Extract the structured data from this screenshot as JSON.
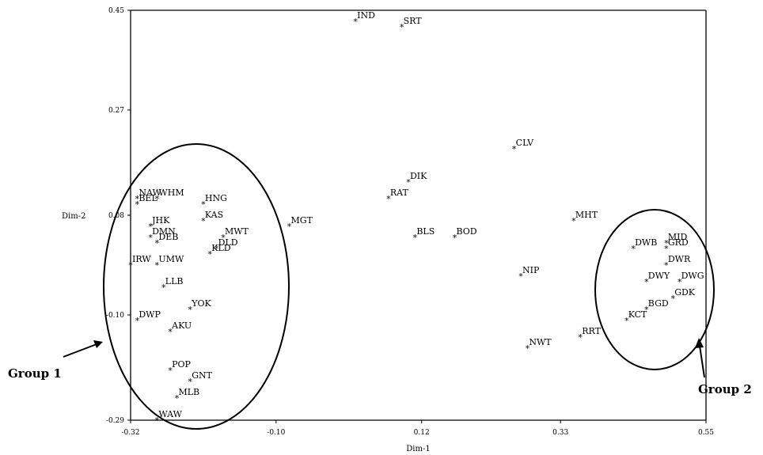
{
  "chart_data": {
    "type": "scatter",
    "xlabel": "Dim-1",
    "ylabel": "Dim-2",
    "xlim": [
      -0.32,
      0.55
    ],
    "ylim": [
      -0.29,
      0.45
    ],
    "xticks": [
      "-0.32",
      "-0.10",
      "0.12",
      "0.33",
      "0.55"
    ],
    "yticks": [
      "0.45",
      "0.27",
      "0.08",
      "-0.10",
      "-0.29"
    ],
    "marker": "*",
    "points": [
      {
        "label": "IND",
        "x": 0.02,
        "y": 0.43
      },
      {
        "label": "SRT",
        "x": 0.09,
        "y": 0.42
      },
      {
        "label": "CLV",
        "x": 0.26,
        "y": 0.2
      },
      {
        "label": "DIK",
        "x": 0.1,
        "y": 0.14
      },
      {
        "label": "RAT",
        "x": 0.07,
        "y": 0.11
      },
      {
        "label": "MHT",
        "x": 0.35,
        "y": 0.07
      },
      {
        "label": "MGT",
        "x": -0.08,
        "y": 0.06
      },
      {
        "label": "BLS",
        "x": 0.11,
        "y": 0.04
      },
      {
        "label": "BOD",
        "x": 0.17,
        "y": 0.04
      },
      {
        "label": "NIP",
        "x": 0.27,
        "y": -0.03
      },
      {
        "label": "NWT",
        "x": 0.28,
        "y": -0.16
      },
      {
        "label": "RRT",
        "x": 0.36,
        "y": -0.14
      },
      {
        "label": "NAW",
        "x": -0.31,
        "y": 0.11
      },
      {
        "label": "BEL",
        "x": -0.31,
        "y": 0.1
      },
      {
        "label": "WHM",
        "x": -0.28,
        "y": 0.11
      },
      {
        "label": "HNG",
        "x": -0.21,
        "y": 0.1
      },
      {
        "label": "JHK",
        "x": -0.29,
        "y": 0.06
      },
      {
        "label": "KAS",
        "x": -0.21,
        "y": 0.07
      },
      {
        "label": "DMN",
        "x": -0.29,
        "y": 0.04
      },
      {
        "label": "DEB",
        "x": -0.28,
        "y": 0.03
      },
      {
        "label": "MWT",
        "x": -0.18,
        "y": 0.04
      },
      {
        "label": "KLD",
        "x": -0.2,
        "y": 0.01
      },
      {
        "label": "DLD",
        "x": -0.19,
        "y": 0.02
      },
      {
        "label": "IRW",
        "x": -0.32,
        "y": -0.01
      },
      {
        "label": "UMW",
        "x": -0.28,
        "y": -0.01
      },
      {
        "label": "LLB",
        "x": -0.27,
        "y": -0.05
      },
      {
        "label": "YOK",
        "x": -0.23,
        "y": -0.09
      },
      {
        "label": "DWP",
        "x": -0.31,
        "y": -0.11
      },
      {
        "label": "AKU",
        "x": -0.26,
        "y": -0.13
      },
      {
        "label": "POP",
        "x": -0.26,
        "y": -0.2
      },
      {
        "label": "GNT",
        "x": -0.23,
        "y": -0.22
      },
      {
        "label": "MLB",
        "x": -0.25,
        "y": -0.25
      },
      {
        "label": "WAW",
        "x": -0.28,
        "y": -0.29
      },
      {
        "label": "DWB",
        "x": 0.44,
        "y": 0.02
      },
      {
        "label": "MID",
        "x": 0.49,
        "y": 0.03
      },
      {
        "label": "GRD",
        "x": 0.49,
        "y": 0.02
      },
      {
        "label": "DWR",
        "x": 0.49,
        "y": -0.01
      },
      {
        "label": "DWY",
        "x": 0.46,
        "y": -0.04
      },
      {
        "label": "DWG",
        "x": 0.51,
        "y": -0.04
      },
      {
        "label": "GDK",
        "x": 0.5,
        "y": -0.07
      },
      {
        "label": "BGD",
        "x": 0.46,
        "y": -0.09
      },
      {
        "label": "KCT",
        "x": 0.43,
        "y": -0.11
      }
    ],
    "annotations": [
      {
        "text": "Group 1",
        "kind": "ellipse-group"
      },
      {
        "text": "Group 2",
        "kind": "ellipse-group"
      }
    ]
  }
}
